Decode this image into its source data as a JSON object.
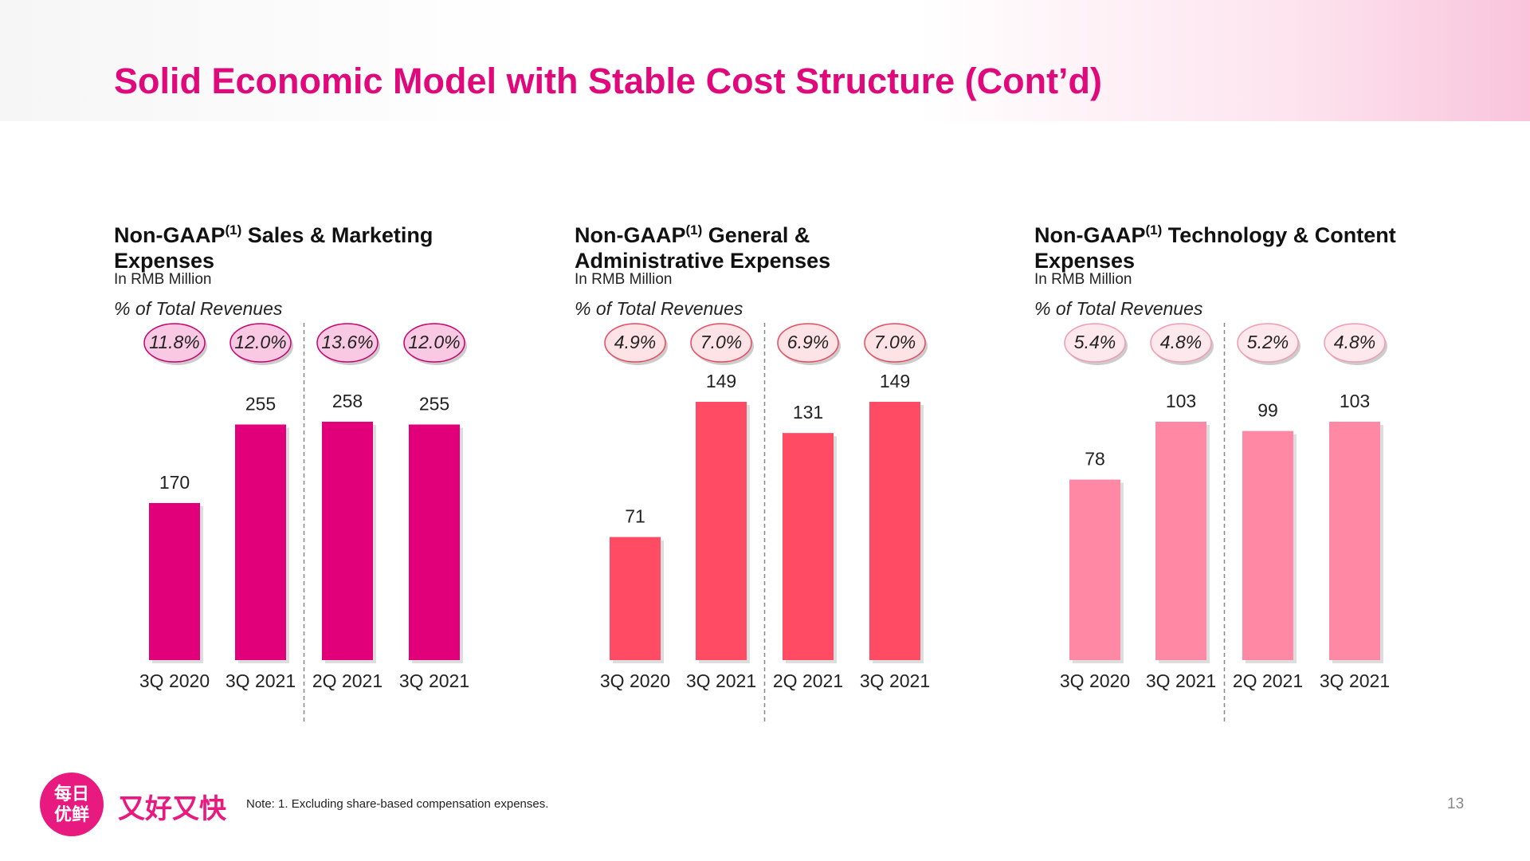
{
  "header": {
    "title": "Solid Economic Model with Stable Cost Structure (Cont’d)"
  },
  "chart_data": [
    {
      "type": "bar",
      "title": "Non-GAAP",
      "title_superscript": "(1)",
      "title_rest": "Sales & Marketing Expenses",
      "subtitle": "In RMB Million",
      "categories": [
        "3Q 2020",
        "3Q 2021",
        "2Q 2021",
        "3Q 2021"
      ],
      "values": [
        170,
        255,
        258,
        255
      ],
      "color": "#e2007a",
      "percentages": {
        "title": "% of Total Revenues",
        "values": [
          11.8,
          12.0,
          13.6,
          12.0
        ],
        "value_labels": [
          "11.8%",
          "12.0%",
          "13.6%",
          "12.0%"
        ],
        "fill": "#f9c9e4",
        "stroke": "#c8006e"
      }
    },
    {
      "type": "bar",
      "title": "Non-GAAP",
      "title_superscript": "(1)",
      "title_rest": "General & Administrative Expenses",
      "subtitle": "In RMB Million",
      "categories": [
        "3Q 2020",
        "3Q 2021",
        "2Q 2021",
        "3Q 2021"
      ],
      "values": [
        71,
        149,
        131,
        149
      ],
      "color": "#ff4b63",
      "percentages": {
        "title": "% of Total Revenues",
        "values": [
          4.9,
          7.0,
          6.9,
          7.0
        ],
        "value_labels": [
          "4.9%",
          "7.0%",
          "6.9%",
          "7.0%"
        ],
        "fill": "#fde3e6",
        "stroke": "#e8485e"
      }
    },
    {
      "type": "bar",
      "title": "Non-GAAP",
      "title_superscript": "(1)",
      "title_rest": "Technology & Content Expenses",
      "subtitle": "In RMB Million",
      "categories": [
        "3Q 2020",
        "3Q 2021",
        "2Q 2021",
        "3Q 2021"
      ],
      "values": [
        78,
        103,
        99,
        103
      ],
      "color": "#ff89a4",
      "percentages": {
        "title": "% of Total Revenues",
        "values": [
          5.4,
          4.8,
          5.2,
          4.8
        ],
        "value_labels": [
          "5.4%",
          "4.8%",
          "5.2%",
          "4.8%"
        ],
        "fill": "#fde8ed",
        "stroke": "#f29ab0"
      }
    }
  ],
  "footer": {
    "note": "Note: 1. Excluding share-based compensation expenses.",
    "page": "13",
    "logo_top": "每日",
    "logo_bottom": "优鲜",
    "slogan": "又好又快"
  }
}
